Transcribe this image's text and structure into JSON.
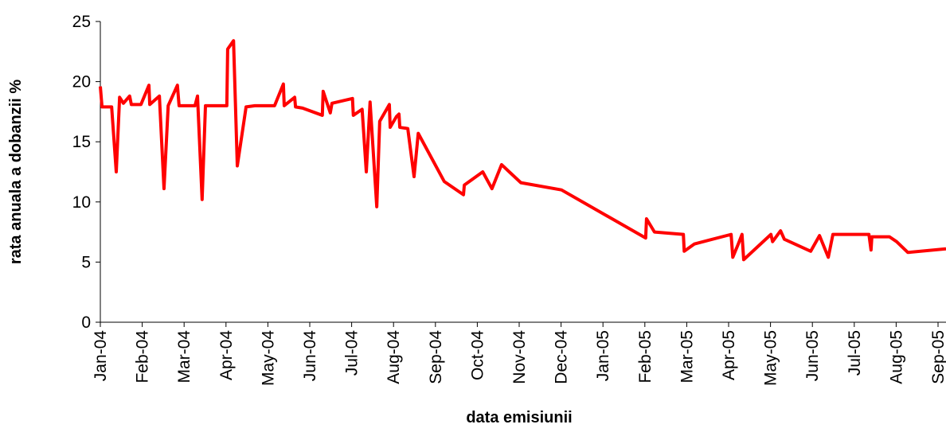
{
  "chart_data": {
    "type": "line",
    "x_label": "data emisiunii",
    "y_label": "rata anuala a dobanzii %",
    "x": [
      0,
      0.04,
      0.27,
      0.38,
      0.46,
      0.55,
      0.7,
      0.74,
      0.97,
      1.16,
      1.18,
      1.41,
      1.52,
      1.62,
      1.84,
      1.88,
      2.26,
      2.32,
      2.43,
      2.51,
      3.02,
      3.04,
      3.18,
      3.27,
      3.48,
      3.69,
      4.16,
      4.37,
      4.39,
      4.64,
      4.66,
      4.83,
      5.3,
      5.32,
      5.49,
      5.53,
      6.02,
      6.04,
      6.25,
      6.35,
      6.44,
      6.6,
      6.67,
      6.9,
      6.92,
      7.07,
      7.13,
      7.15,
      7.34,
      7.49,
      7.59,
      8.21,
      8.67,
      8.69,
      9.13,
      9.35,
      9.58,
      10.04,
      11.01,
      13.02,
      13.04,
      13.23,
      13.92,
      13.94,
      14.18,
      15.06,
      15.1,
      15.23,
      15.32,
      15.36,
      16.01,
      16.05,
      16.24,
      16.33,
      16.96,
      17.17,
      17.38,
      17.49,
      18.35,
      18.4,
      18.42,
      18.84,
      19.01,
      19.28,
      20.19
    ],
    "series": [
      {
        "name": "rata anuala",
        "color": "#ff0000",
        "values": [
          19.6,
          17.9,
          17.9,
          12.5,
          18.7,
          18.2,
          18.8,
          18.1,
          18.1,
          19.7,
          18.1,
          18.8,
          11.1,
          18,
          19.7,
          18,
          18,
          18.8,
          10.2,
          18,
          18,
          22.7,
          23.4,
          13,
          17.9,
          18,
          18,
          19.8,
          18,
          18.7,
          17.9,
          17.8,
          17.2,
          19.2,
          17.4,
          18.2,
          18.6,
          17.2,
          17.7,
          12.5,
          18.3,
          9.6,
          16.7,
          18.1,
          16.2,
          17.1,
          17.3,
          16.2,
          16.1,
          12.1,
          15.7,
          11.7,
          10.6,
          11.4,
          12.5,
          11.1,
          13.1,
          11.6,
          11,
          7,
          8.6,
          7.5,
          7.3,
          5.9,
          6.5,
          7.3,
          5.4,
          6.5,
          7.3,
          5.2,
          7.3,
          6.7,
          7.6,
          6.9,
          5.9,
          7.2,
          5.4,
          7.3,
          7.3,
          6,
          7.1,
          7.1,
          6.7,
          5.8,
          6.1
        ]
      }
    ],
    "xlim": [
      0,
      20.19
    ],
    "xticks": [
      {
        "value": 0,
        "label": "Jan-04"
      },
      {
        "value": 1,
        "label": "Feb-04"
      },
      {
        "value": 2,
        "label": "Mar-04"
      },
      {
        "value": 3,
        "label": "Apr-04"
      },
      {
        "value": 4,
        "label": "May-04"
      },
      {
        "value": 5,
        "label": "Jun-04"
      },
      {
        "value": 6,
        "label": "Jul-04"
      },
      {
        "value": 7,
        "label": "Aug-04"
      },
      {
        "value": 8,
        "label": "Sep-04"
      },
      {
        "value": 9,
        "label": "Oct-04"
      },
      {
        "value": 10,
        "label": "Nov-04"
      },
      {
        "value": 11,
        "label": "Dec-04"
      },
      {
        "value": 12,
        "label": "Jan-05"
      },
      {
        "value": 13,
        "label": "Feb-05"
      },
      {
        "value": 14,
        "label": "Mar-05"
      },
      {
        "value": 15,
        "label": "Apr-05"
      },
      {
        "value": 16,
        "label": "May-05"
      },
      {
        "value": 17,
        "label": "Jun-05"
      },
      {
        "value": 18,
        "label": "Jul-05"
      },
      {
        "value": 19,
        "label": "Aug-05"
      },
      {
        "value": 20,
        "label": "Sep-05"
      }
    ],
    "ylim": [
      0,
      25
    ],
    "yticks": [
      0,
      5,
      10,
      15,
      20,
      25
    ]
  }
}
